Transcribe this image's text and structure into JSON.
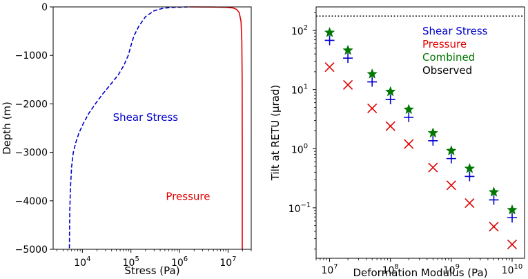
{
  "chart_data": [
    {
      "type": "line",
      "panel": "left",
      "xlabel": "Stress (Pa)",
      "ylabel": "Depth (m)",
      "xscale": "log",
      "xlim": [
        2500,
        30000000
      ],
      "ylim": [
        -5000,
        0
      ],
      "xticks": [
        {
          "value": 10000,
          "base": "10",
          "exp": "4"
        },
        {
          "value": 100000,
          "base": "10",
          "exp": "5"
        },
        {
          "value": 1000000,
          "base": "10",
          "exp": "6"
        },
        {
          "value": 10000000,
          "base": "10",
          "exp": "7"
        }
      ],
      "yticks": [
        {
          "value": 0,
          "label": "0"
        },
        {
          "value": -1000,
          "label": "−1000"
        },
        {
          "value": -2000,
          "label": "−2000"
        },
        {
          "value": -3000,
          "label": "−3000"
        },
        {
          "value": -4000,
          "label": "−4000"
        },
        {
          "value": -5000,
          "label": "−5000"
        }
      ],
      "series": [
        {
          "name": "Shear Stress",
          "color": "#0000cc",
          "style": "dashed",
          "points": [
            {
              "depth": 0,
              "stress": 1500000
            },
            {
              "depth": -10,
              "stress": 700000
            },
            {
              "depth": -30,
              "stress": 450000
            },
            {
              "depth": -80,
              "stress": 300000
            },
            {
              "depth": -200,
              "stress": 200000
            },
            {
              "depth": -400,
              "stress": 145000
            },
            {
              "depth": -600,
              "stress": 115000
            },
            {
              "depth": -800,
              "stress": 100000
            },
            {
              "depth": -1000,
              "stress": 88000
            },
            {
              "depth": -1200,
              "stress": 72000
            },
            {
              "depth": -1400,
              "stress": 55000
            },
            {
              "depth": -1600,
              "stress": 38000
            },
            {
              "depth": -1800,
              "stress": 26000
            },
            {
              "depth": -2000,
              "stress": 18500
            },
            {
              "depth": -2200,
              "stress": 13500
            },
            {
              "depth": -2400,
              "stress": 10500
            },
            {
              "depth": -2600,
              "stress": 8500
            },
            {
              "depth": -2800,
              "stress": 7300
            },
            {
              "depth": -3000,
              "stress": 6500
            },
            {
              "depth": -3300,
              "stress": 6000
            },
            {
              "depth": -3700,
              "stress": 5700
            },
            {
              "depth": -4200,
              "stress": 5500
            },
            {
              "depth": -5000,
              "stress": 5400
            }
          ]
        },
        {
          "name": "Pressure",
          "color": "#e00000",
          "style": "solid",
          "points": [
            {
              "depth": 0,
              "stress": 1600000
            },
            {
              "depth": -3,
              "stress": 5000000
            },
            {
              "depth": -8,
              "stress": 9000000
            },
            {
              "depth": -20,
              "stress": 12500000
            },
            {
              "depth": -50,
              "stress": 15000000
            },
            {
              "depth": -120,
              "stress": 17000000
            },
            {
              "depth": -300,
              "stress": 18500000
            },
            {
              "depth": -700,
              "stress": 19200000
            },
            {
              "depth": -1500,
              "stress": 19500000
            },
            {
              "depth": -3000,
              "stress": 19600000
            },
            {
              "depth": -5000,
              "stress": 19600000
            }
          ]
        }
      ],
      "annotations": [
        {
          "text": "Shear Stress",
          "color": "#0000cc",
          "stress": 200000,
          "depth": -2350
        },
        {
          "text": "Pressure",
          "color": "#e00000",
          "stress": 1500000,
          "depth": -3980
        }
      ]
    },
    {
      "type": "scatter",
      "panel": "right",
      "xlabel": "Deformation Modulus (Pa)",
      "ylabel": "Tilt at RETU (μrad)",
      "xscale": "log",
      "yscale": "log",
      "xlim": [
        6000000,
        16000000000
      ],
      "ylim": [
        0.014,
        250
      ],
      "xticks": [
        {
          "value": 10000000,
          "base": "10",
          "exp": "7"
        },
        {
          "value": 100000000,
          "base": "10",
          "exp": "8"
        },
        {
          "value": 1000000000,
          "base": "10",
          "exp": "9"
        },
        {
          "value": 10000000000,
          "base": "10",
          "exp": "10"
        }
      ],
      "yticks": [
        {
          "value": 0.1,
          "base": "10",
          "exp": "−1"
        },
        {
          "value": 1,
          "base": "10",
          "exp": "0"
        },
        {
          "value": 10,
          "base": "10",
          "exp": "1"
        },
        {
          "value": 100,
          "base": "10",
          "exp": "2"
        }
      ],
      "x": [
        10000000,
        20000000,
        50000000,
        100000000,
        200000000,
        500000000,
        1000000000,
        2000000000,
        5000000000,
        10000000000
      ],
      "series": [
        {
          "name": "Shear Stress",
          "color": "#0000cc",
          "marker": "plus",
          "values": [
            68,
            34,
            13.5,
            6.8,
            3.4,
            1.36,
            0.68,
            0.34,
            0.136,
            0.068
          ]
        },
        {
          "name": "Pressure",
          "color": "#e00000",
          "marker": "x",
          "values": [
            24,
            12,
            4.8,
            2.4,
            1.2,
            0.48,
            0.24,
            0.12,
            0.048,
            0.024
          ]
        },
        {
          "name": "Combined",
          "color": "#007700",
          "marker": "star",
          "values": [
            92,
            46,
            18.3,
            9.2,
            4.6,
            1.84,
            0.92,
            0.46,
            0.184,
            0.092
          ]
        }
      ],
      "observed": {
        "name": "Observed",
        "color": "#000000",
        "style": "dotted",
        "value": 175
      },
      "legend": {
        "placement": "top-right",
        "entries": [
          {
            "text": "Shear Stress",
            "color": "#0000cc"
          },
          {
            "text": "Pressure",
            "color": "#e00000"
          },
          {
            "text": "Combined",
            "color": "#007700"
          },
          {
            "text": "Observed",
            "color": "#000000"
          }
        ]
      }
    }
  ]
}
